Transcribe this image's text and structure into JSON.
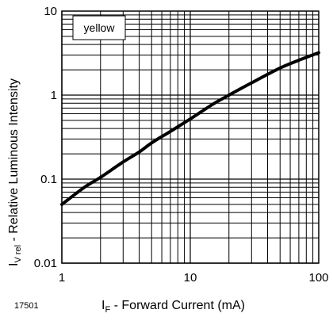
{
  "chart_data": {
    "type": "line",
    "x_scale": "log",
    "y_scale": "log",
    "xlim": [
      1,
      100
    ],
    "ylim": [
      0.01,
      10
    ],
    "grid": true,
    "x_ticks": [
      {
        "value": 1,
        "label": "1"
      },
      {
        "value": 10,
        "label": "10"
      },
      {
        "value": 100,
        "label": "100"
      }
    ],
    "y_ticks": [
      {
        "value": 0.01,
        "label": "0.01"
      },
      {
        "value": 0.1,
        "label": "0.1"
      },
      {
        "value": 1,
        "label": "1"
      },
      {
        "value": 10,
        "label": "10"
      }
    ],
    "xlabel": {
      "main": "I",
      "sub": "F",
      "rest": " - Forward Current (mA)"
    },
    "ylabel": {
      "main": "I",
      "sub": "V rel",
      "rest": " - Relative Luminous Intensity"
    },
    "figure_id": "17501",
    "legend": {
      "text": "yellow",
      "placement": "top-left"
    },
    "colors": {
      "line": "#000000",
      "grid": "#000000",
      "background": "#ffffff"
    },
    "series": [
      {
        "name": "yellow",
        "x": [
          1,
          1.5,
          2,
          3,
          4,
          5,
          7,
          10,
          15,
          20,
          30,
          50,
          70,
          100
        ],
        "y": [
          0.05,
          0.08,
          0.105,
          0.16,
          0.21,
          0.27,
          0.37,
          0.52,
          0.78,
          1.0,
          1.4,
          2.1,
          2.6,
          3.2
        ]
      }
    ]
  }
}
